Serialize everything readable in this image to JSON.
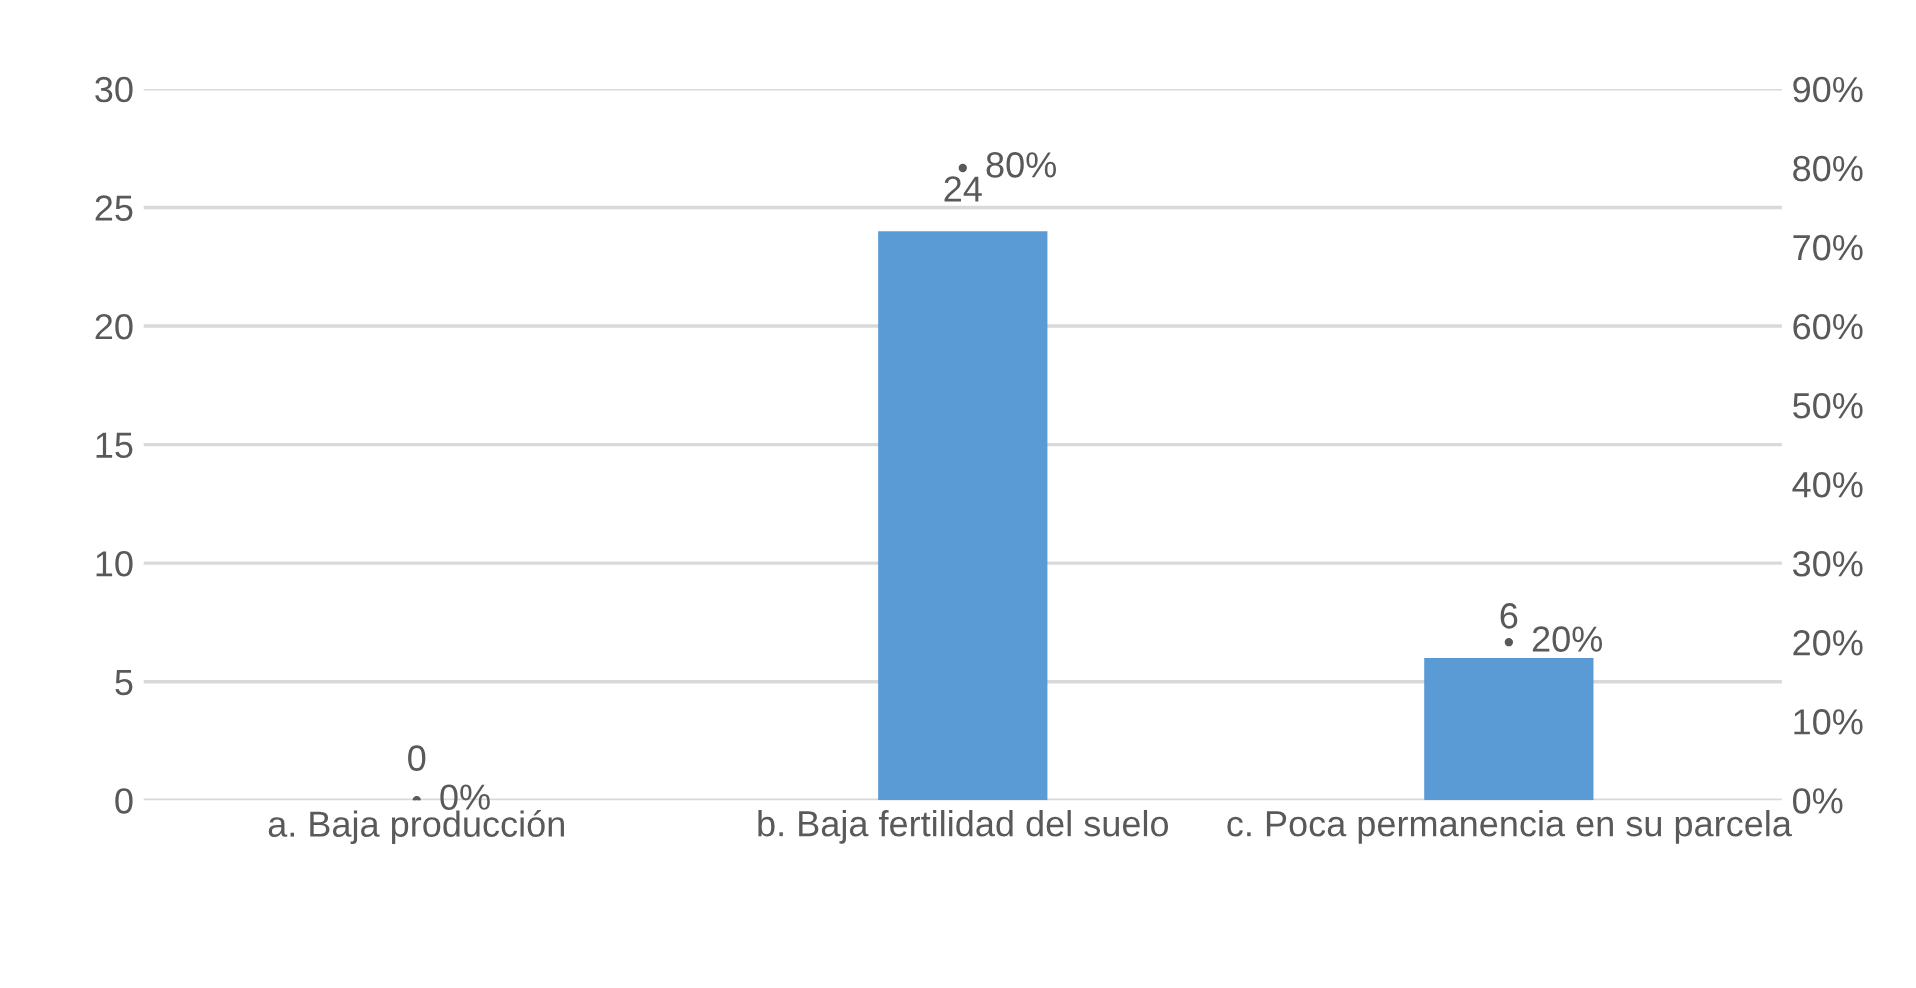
{
  "chart_data": {
    "type": "bar",
    "categories": [
      "a. Baja producción",
      "b. Baja fertilidad del suelo",
      "c. Poca permanencia en su parcela"
    ],
    "series": [
      {
        "color": "#5b9bd5",
        "values": [
          0,
          24,
          6
        ],
        "data_labels": true
      },
      {
        "type": "scatter",
        "axis": "y2",
        "marker": "circle",
        "color": "#595959",
        "values": [
          0,
          80,
          20
        ],
        "value_labels": [
          "0%",
          "80%",
          "20%"
        ]
      }
    ],
    "ylim": [
      0,
      30
    ],
    "yticks": [
      0,
      5,
      10,
      15,
      20,
      25,
      30
    ],
    "y2lim": [
      0,
      90
    ],
    "y2ticks": [
      {
        "value": 0,
        "label": "0%"
      },
      {
        "value": 10,
        "label": "10%"
      },
      {
        "value": 20,
        "label": "20%"
      },
      {
        "value": 30,
        "label": "30%"
      },
      {
        "value": 40,
        "label": "40%"
      },
      {
        "value": 50,
        "label": "50%"
      },
      {
        "value": 60,
        "label": "60%"
      },
      {
        "value": 70,
        "label": "70%"
      },
      {
        "value": 80,
        "label": "80%"
      },
      {
        "value": 90,
        "label": "90%"
      }
    ],
    "grid": "y"
  }
}
